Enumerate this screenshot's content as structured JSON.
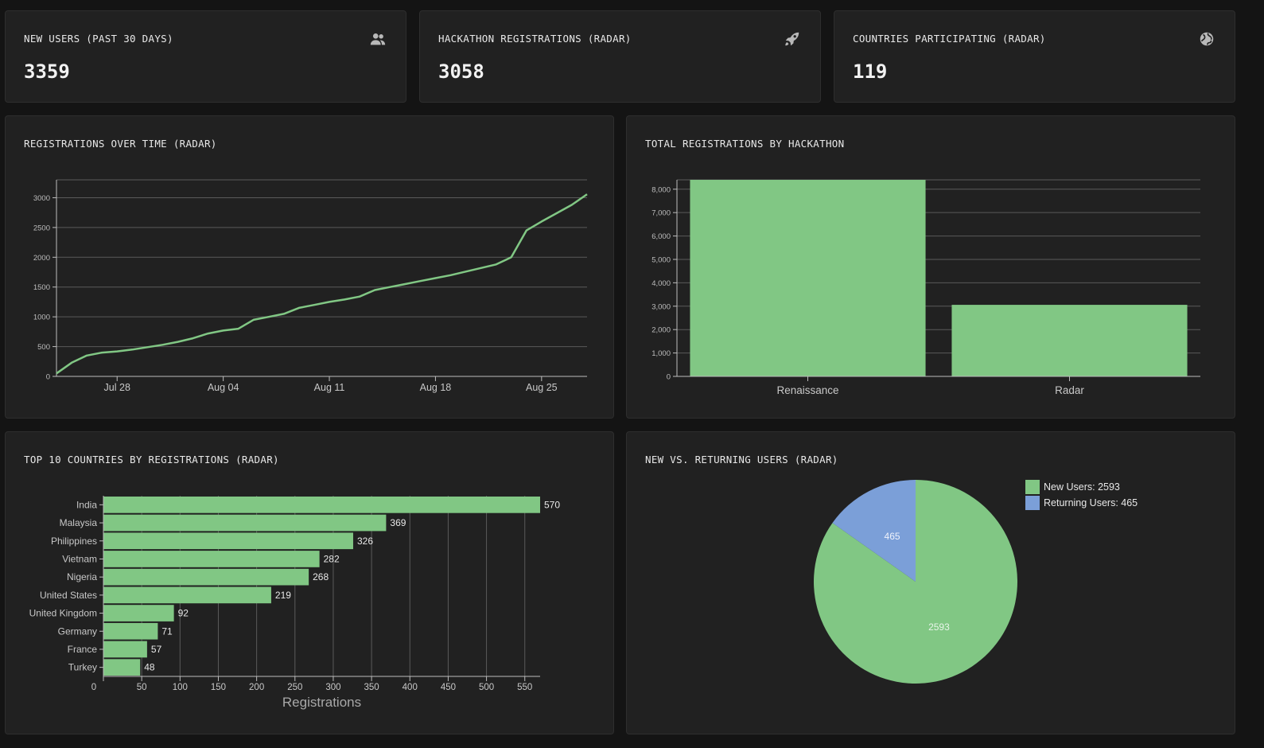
{
  "stats": [
    {
      "title": "NEW USERS (PAST 30 DAYS)",
      "value": "3359",
      "icon": "users-icon"
    },
    {
      "title": "HACKATHON REGISTRATIONS (RADAR)",
      "value": "3058",
      "icon": "rocket-icon"
    },
    {
      "title": "COUNTRIES PARTICIPATING (RADAR)",
      "value": "119",
      "icon": "globe-icon"
    }
  ],
  "colors": {
    "green": "#81c784",
    "blue": "#7b9fd8",
    "grid": "#5a5a5a",
    "axis": "#bdbdbd"
  },
  "chart_data": [
    {
      "type": "line",
      "title": "REGISTRATIONS OVER TIME (RADAR)",
      "x_ticks": [
        "Jul 28",
        "Aug 04",
        "Aug 11",
        "Aug 18",
        "Aug 25"
      ],
      "y_ticks": [
        "0",
        "500",
        "1000",
        "1500",
        "2000",
        "2500",
        "3000"
      ],
      "xlim": [
        "Jul 24",
        "Aug 28"
      ],
      "ylim": [
        0,
        3300
      ],
      "series": [
        {
          "x": [
            "Jul 24",
            "Jul 25",
            "Jul 26",
            "Jul 27",
            "Jul 28",
            "Jul 29",
            "Jul 30",
            "Jul 31",
            "Aug 01",
            "Aug 02",
            "Aug 03",
            "Aug 04",
            "Aug 05",
            "Aug 06",
            "Aug 07",
            "Aug 08",
            "Aug 09",
            "Aug 10",
            "Aug 11",
            "Aug 12",
            "Aug 13",
            "Aug 14",
            "Aug 15",
            "Aug 16",
            "Aug 17",
            "Aug 18",
            "Aug 19",
            "Aug 20",
            "Aug 21",
            "Aug 22",
            "Aug 23",
            "Aug 24",
            "Aug 25",
            "Aug 26",
            "Aug 27",
            "Aug 28"
          ],
          "y": [
            50,
            230,
            350,
            400,
            420,
            450,
            490,
            530,
            580,
            640,
            720,
            770,
            800,
            950,
            1000,
            1050,
            1150,
            1200,
            1250,
            1290,
            1340,
            1450,
            1500,
            1550,
            1600,
            1650,
            1700,
            1760,
            1820,
            1880,
            2000,
            2450,
            2600,
            2740,
            2880,
            3058
          ]
        }
      ]
    },
    {
      "type": "bar",
      "title": "TOTAL REGISTRATIONS BY HACKATHON",
      "categories": [
        "Renaissance",
        "Radar"
      ],
      "values": [
        8400,
        3058
      ],
      "y_ticks": [
        "0",
        "1,000",
        "2,000",
        "3,000",
        "4,000",
        "5,000",
        "6,000",
        "7,000",
        "8,000"
      ],
      "ylim": [
        0,
        8400
      ]
    },
    {
      "type": "bar",
      "orientation": "horizontal",
      "title": "TOP 10 COUNTRIES BY REGISTRATIONS (RADAR)",
      "categories": [
        "India",
        "Malaysia",
        "Philippines",
        "Vietnam",
        "Nigeria",
        "United States",
        "United Kingdom",
        "Germany",
        "France",
        "Turkey"
      ],
      "values": [
        570,
        369,
        326,
        282,
        268,
        219,
        92,
        71,
        57,
        48
      ],
      "x_ticks": [
        "0",
        "50",
        "100",
        "150",
        "200",
        "250",
        "300",
        "350",
        "400",
        "450",
        "500",
        "550"
      ],
      "xlim": [
        0,
        570
      ],
      "xlabel": "Registrations"
    },
    {
      "type": "pie",
      "title": "NEW VS. RETURNING USERS (RADAR)",
      "labels": [
        "New Users: 2593",
        "Returning Users: 465"
      ],
      "values": [
        2593,
        465
      ],
      "value_labels": [
        "2593",
        "465"
      ]
    }
  ]
}
